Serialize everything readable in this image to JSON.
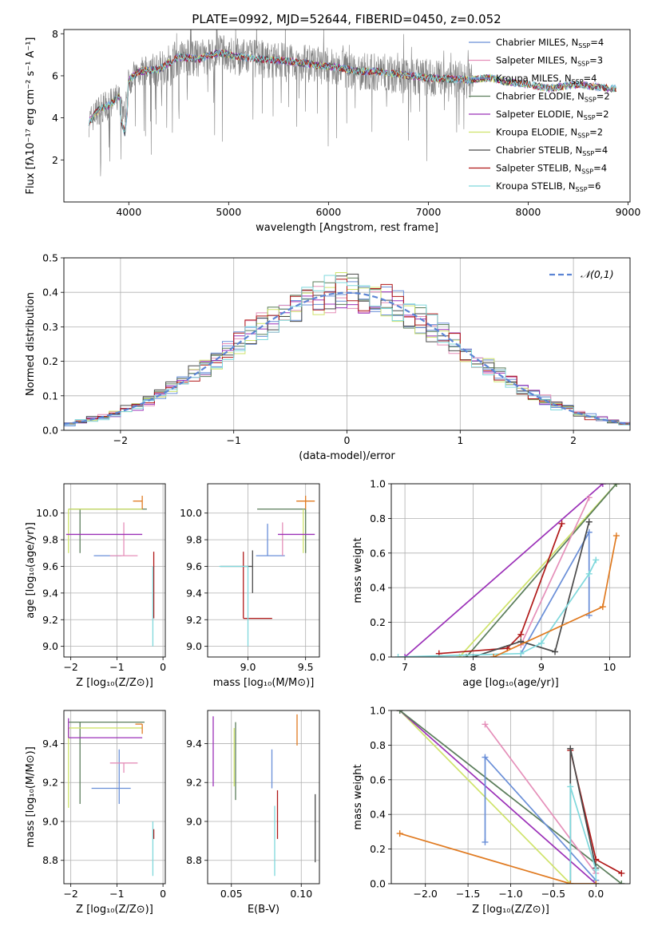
{
  "figure_title": "PLATE=0992, MJD=52644, FIBERID=0450, z=0.052",
  "colors": {
    "Chabrier MILES": "#6a8fd8",
    "Salpeter MILES": "#e58fb9",
    "Kroupa MILES": "#6a8fd8",
    "Chabrier ELODIE": "#5a7d5a",
    "Salpeter ELODIE": "#9b30b8",
    "Kroupa ELODIE": "#cfe36a",
    "Chabrier STELIB": "#4a4a4a",
    "Salpeter STELIB": "#b01818",
    "Kroupa STELIB": "#7fd8dc",
    "extra": "#e07a20",
    "data": "#808080"
  },
  "chart_data": [
    {
      "id": "spectrum",
      "type": "line",
      "xlabel": "wavelength [Angstrom, rest frame]",
      "ylabel": "Flux [fλ10⁻¹⁷ erg cm⁻² s⁻¹ A⁻¹]",
      "xlim": [
        3350,
        9020
      ],
      "ylim": [
        0,
        8.2
      ],
      "xticks": [
        "4000",
        "5000",
        "6000",
        "7000",
        "8000",
        "9000"
      ],
      "yticks": [
        "2",
        "4",
        "6",
        "8"
      ],
      "legend": [
        "Chabrier MILES, N_SSP=4",
        "Salpeter MILES, N_SSP=3",
        "Kroupa MILES, N_SSP=4",
        "Chabrier ELODIE, N_SSP=2",
        "Salpeter ELODIE, N_SSP=2",
        "Kroupa ELODIE, N_SSP=2",
        "Chabrier STELIB, N_SSP=4",
        "Salpeter STELIB, N_SSP=4",
        "Kroupa STELIB, N_SSP=6"
      ],
      "legend_location": "right",
      "continuum_knots": [
        [
          3600,
          3.8
        ],
        [
          3700,
          4.4
        ],
        [
          3800,
          4.6
        ],
        [
          3900,
          5.0
        ],
        [
          3960,
          4.1
        ],
        [
          4000,
          5.8
        ],
        [
          4100,
          6.2
        ],
        [
          4300,
          6.3
        ],
        [
          4500,
          6.9
        ],
        [
          4700,
          6.8
        ],
        [
          4900,
          7.1
        ],
        [
          5100,
          6.9
        ],
        [
          5300,
          6.8
        ],
        [
          5600,
          6.7
        ],
        [
          5900,
          6.5
        ],
        [
          6100,
          6.4
        ],
        [
          6300,
          6.2
        ],
        [
          6500,
          6.2
        ],
        [
          6800,
          6.0
        ],
        [
          7000,
          5.9
        ],
        [
          7400,
          5.8
        ],
        [
          7600,
          5.9
        ],
        [
          7800,
          5.7
        ],
        [
          8000,
          5.6
        ],
        [
          8200,
          5.4
        ],
        [
          8500,
          5.6
        ],
        [
          8800,
          5.4
        ]
      ],
      "model_end_wavelength": 8880,
      "data_end_wavelength": 7450
    },
    {
      "id": "residuals",
      "type": "histogram",
      "xlabel": "(data-model)/error",
      "ylabel": "Normed distribution",
      "xlim": [
        -2.5,
        2.5
      ],
      "ylim": [
        0,
        0.5
      ],
      "xticks": [
        "−2",
        "−1",
        "0",
        "1",
        "2"
      ],
      "yticks": [
        "0.0",
        "0.1",
        "0.2",
        "0.3",
        "0.4",
        "0.5"
      ],
      "grid": true,
      "legend": [
        "𝒩(0,1)"
      ],
      "legend_location": "top-right",
      "bins": [
        -2.5,
        2.5,
        50
      ],
      "curve": {
        "mean": 0,
        "sigma": 1,
        "style": "dashed"
      }
    },
    {
      "id": "age-vs-Z",
      "type": "errorbar",
      "xlabel": "Z [log₁₀(Z/Z⊙)]",
      "ylabel": "age  [log₁₀(age/yr)]",
      "xlim": [
        -2.15,
        0.05
      ],
      "ylim": [
        8.92,
        10.22
      ],
      "xticks": [
        "−2",
        "−1",
        "0"
      ],
      "yticks": [
        "9.0",
        "9.2",
        "9.4",
        "9.6",
        "9.8",
        "10.0"
      ],
      "grid": true,
      "points": [
        {
          "c": "Chabrier MILES",
          "x": -0.9,
          "y": 9.68,
          "xerr": [
            0.6,
            0.0
          ],
          "yerr": [
            0.0,
            0.0
          ]
        },
        {
          "c": "Salpeter MILES",
          "x": -0.85,
          "y": 9.68,
          "xerr": [
            0.3,
            0.3
          ],
          "yerr": [
            0.0,
            0.25
          ]
        },
        {
          "c": "Chabrier ELODIE",
          "x": -1.8,
          "y": 10.03,
          "xerr": [
            0.25,
            1.45
          ],
          "yerr": [
            0.33,
            0.0
          ]
        },
        {
          "c": "Kroupa ELODIE",
          "x": -2.05,
          "y": 10.03,
          "xerr": [
            0.0,
            1.6
          ],
          "yerr": [
            0.33,
            0.0
          ]
        },
        {
          "c": "Salpeter ELODIE",
          "x": -0.9,
          "y": 9.84,
          "xerr": [
            1.2,
            0.45
          ],
          "yerr": [
            0.0,
            0.0
          ]
        },
        {
          "c": "Chabrier STELIB",
          "x": -0.2,
          "y": 9.6,
          "xerr": [
            0.0,
            0.0
          ],
          "yerr": [
            0.0,
            0.0
          ]
        },
        {
          "c": "Salpeter STELIB",
          "x": -0.2,
          "y": 9.21,
          "xerr": [
            0.0,
            0.0
          ],
          "yerr": [
            0.0,
            0.5
          ]
        },
        {
          "c": "Kroupa STELIB",
          "x": -0.22,
          "y": 9.6,
          "xerr": [
            0.0,
            0.0
          ],
          "yerr": [
            0.6,
            0.0
          ]
        },
        {
          "c": "extra",
          "x": -0.45,
          "y": 10.09,
          "xerr": [
            0.2,
            0.0
          ],
          "yerr": [
            0.06,
            0.04
          ]
        }
      ]
    },
    {
      "id": "age-vs-mass",
      "type": "errorbar",
      "xlabel": "mass [log₁₀(M/M⊙)]",
      "ylabel": "",
      "xlim": [
        8.65,
        9.62
      ],
      "ylim": [
        8.92,
        10.22
      ],
      "xticks": [
        "9.0",
        "9.5"
      ],
      "yticks": [
        "9.0",
        "9.2",
        "9.4",
        "9.6",
        "9.8",
        "10.0"
      ],
      "grid": true,
      "points": [
        {
          "c": "Chabrier MILES",
          "x": 9.17,
          "y": 9.68,
          "xerr": [
            0.1,
            0.15
          ],
          "yerr": [
            0.0,
            0.24
          ]
        },
        {
          "c": "Salpeter MILES",
          "x": 9.3,
          "y": 9.68,
          "xerr": [
            0.0,
            0.0
          ],
          "yerr": [
            0.0,
            0.25
          ]
        },
        {
          "c": "Chabrier ELODIE",
          "x": 9.5,
          "y": 10.03,
          "xerr": [
            0.42,
            0.0
          ],
          "yerr": [
            0.33,
            0.0
          ]
        },
        {
          "c": "Kroupa ELODIE",
          "x": 9.48,
          "y": 10.03,
          "xerr": [
            0.0,
            0.0
          ],
          "yerr": [
            0.33,
            0.0
          ]
        },
        {
          "c": "Salpeter ELODIE",
          "x": 9.43,
          "y": 9.84,
          "xerr": [
            0.17,
            0.15
          ],
          "yerr": [
            0.0,
            0.0
          ]
        },
        {
          "c": "Chabrier STELIB",
          "x": 9.04,
          "y": 9.6,
          "xerr": [
            0.28,
            0.0
          ],
          "yerr": [
            0.2,
            0.12
          ]
        },
        {
          "c": "Salpeter STELIB",
          "x": 8.96,
          "y": 9.21,
          "xerr": [
            0.0,
            0.25
          ],
          "yerr": [
            0.0,
            0.5
          ]
        },
        {
          "c": "Kroupa STELIB",
          "x": 9.0,
          "y": 9.6,
          "xerr": [
            0.25,
            0.0
          ],
          "yerr": [
            0.6,
            0.0
          ]
        },
        {
          "c": "extra",
          "x": 9.5,
          "y": 10.09,
          "xerr": [
            0.08,
            0.08
          ],
          "yerr": [
            0.06,
            0.04
          ]
        }
      ]
    },
    {
      "id": "weight-vs-age",
      "type": "line",
      "xlabel": "age  [log₁₀(age/yr)]",
      "ylabel": "mass weight",
      "xlim": [
        6.8,
        10.3
      ],
      "ylim": [
        0,
        1
      ],
      "xticks": [
        "7",
        "8",
        "9",
        "10"
      ],
      "yticks": [
        "0.0",
        "0.2",
        "0.4",
        "0.6",
        "0.8",
        "1.0"
      ],
      "grid": true,
      "series": [
        {
          "c": "Salpeter ELODIE",
          "x": [
            7.0,
            9.9
          ],
          "y": [
            0.0,
            1.0
          ]
        },
        {
          "c": "Kroupa ELODIE",
          "x": [
            7.8,
            10.1
          ],
          "y": [
            0.0,
            1.0
          ]
        },
        {
          "c": "Chabrier ELODIE",
          "x": [
            7.9,
            10.1
          ],
          "y": [
            0.0,
            1.0
          ]
        },
        {
          "c": "Salpeter MILES",
          "x": [
            8.7,
            9.7
          ],
          "y": [
            0.07,
            0.92
          ]
        },
        {
          "c": "Chabrier MILES",
          "x": [
            8.7,
            9.7,
            9.7
          ],
          "y": [
            0.02,
            0.72,
            0.24
          ]
        },
        {
          "c": "Salpeter STELIB",
          "x": [
            7.5,
            8.5,
            8.7,
            9.3
          ],
          "y": [
            0.02,
            0.05,
            0.13,
            0.77
          ]
        },
        {
          "c": "Chabrier STELIB",
          "x": [
            8.0,
            8.7,
            9.2,
            9.7
          ],
          "y": [
            0.0,
            0.09,
            0.03,
            0.78
          ]
        },
        {
          "c": "Kroupa STELIB",
          "x": [
            6.9,
            8.7,
            9.0,
            9.7,
            9.8
          ],
          "y": [
            0.0,
            0.02,
            0.08,
            0.48,
            0.56
          ]
        },
        {
          "c": "extra",
          "x": [
            8.3,
            9.9,
            10.1
          ],
          "y": [
            0.0,
            0.29,
            0.7
          ]
        }
      ]
    },
    {
      "id": "mass-vs-Z",
      "type": "errorbar",
      "xlabel": "Z [log₁₀(Z/Z⊙)]",
      "ylabel": "mass [log₁₀(M/M⊙)]",
      "xlim": [
        -2.15,
        0.05
      ],
      "ylim": [
        8.68,
        9.57
      ],
      "xticks": [
        "−2",
        "−1",
        "0"
      ],
      "yticks": [
        "8.8",
        "9.0",
        "9.2",
        "9.4"
      ],
      "grid": true,
      "points": [
        {
          "c": "Chabrier MILES",
          "x": -0.95,
          "y": 9.17,
          "xerr": [
            0.6,
            0.25
          ],
          "yerr": [
            0.08,
            0.2
          ]
        },
        {
          "c": "Salpeter MILES",
          "x": -0.85,
          "y": 9.3,
          "xerr": [
            0.3,
            0.3
          ],
          "yerr": [
            0.05,
            0.0
          ]
        },
        {
          "c": "Chabrier ELODIE",
          "x": -1.8,
          "y": 9.51,
          "xerr": [
            0.25,
            1.4
          ],
          "yerr": [
            0.42,
            0.0
          ]
        },
        {
          "c": "Kroupa ELODIE",
          "x": -2.05,
          "y": 9.48,
          "xerr": [
            0.0,
            1.6
          ],
          "yerr": [
            0.41,
            0.0
          ]
        },
        {
          "c": "Salpeter ELODIE",
          "x": -2.05,
          "y": 9.43,
          "xerr": [
            0.0,
            1.6
          ],
          "yerr": [
            0.0,
            0.1
          ]
        },
        {
          "c": "Chabrier STELIB",
          "x": -0.2,
          "y": 9.04,
          "xerr": [
            0.0,
            0.0
          ],
          "yerr": [
            0.0,
            0.0
          ]
        },
        {
          "c": "Salpeter STELIB",
          "x": -0.2,
          "y": 8.96,
          "xerr": [
            0.0,
            0.0
          ],
          "yerr": [
            0.05,
            0.0
          ]
        },
        {
          "c": "Kroupa STELIB",
          "x": -0.22,
          "y": 9.0,
          "xerr": [
            0.0,
            0.0
          ],
          "yerr": [
            0.28,
            0.0
          ]
        },
        {
          "c": "extra",
          "x": -0.45,
          "y": 9.5,
          "xerr": [
            0.15,
            0.0
          ],
          "yerr": [
            0.05,
            0.0
          ]
        }
      ]
    },
    {
      "id": "mass-vs-ebv",
      "type": "errorbar",
      "xlabel": "E(B-V)",
      "ylabel": "",
      "xlim": [
        0.033,
        0.113
      ],
      "ylim": [
        8.68,
        9.57
      ],
      "xticks": [
        "0.05",
        "0.10"
      ],
      "yticks": [
        "8.8",
        "9.0",
        "9.2",
        "9.4"
      ],
      "grid": true,
      "points": [
        {
          "c": "Chabrier MILES",
          "x": 0.079,
          "y": 9.17,
          "xerr": [
            0.0,
            0.0
          ],
          "yerr": [
            0.0,
            0.2
          ]
        },
        {
          "c": "Salpeter MILES",
          "x": 0.055,
          "y": 9.3,
          "xerr": [
            0.0,
            0.0
          ],
          "yerr": [
            0.0,
            0.0
          ]
        },
        {
          "c": "Chabrier ELODIE",
          "x": 0.053,
          "y": 9.51,
          "xerr": [
            0.0,
            0.0
          ],
          "yerr": [
            0.4,
            0.0
          ]
        },
        {
          "c": "Kroupa ELODIE",
          "x": 0.052,
          "y": 9.48,
          "xerr": [
            0.0,
            0.0
          ],
          "yerr": [
            0.3,
            0.0
          ]
        },
        {
          "c": "Salpeter ELODIE",
          "x": 0.037,
          "y": 9.43,
          "xerr": [
            0.0,
            0.0
          ],
          "yerr": [
            0.25,
            0.11
          ]
        },
        {
          "c": "Chabrier STELIB",
          "x": 0.11,
          "y": 9.04,
          "xerr": [
            0.0,
            0.0
          ],
          "yerr": [
            0.25,
            0.1
          ]
        },
        {
          "c": "Salpeter STELIB",
          "x": 0.083,
          "y": 8.96,
          "xerr": [
            0.0,
            0.0
          ],
          "yerr": [
            0.05,
            0.2
          ]
        },
        {
          "c": "Kroupa STELIB",
          "x": 0.081,
          "y": 9.0,
          "xerr": [
            0.0,
            0.0
          ],
          "yerr": [
            0.28,
            0.08
          ]
        },
        {
          "c": "extra",
          "x": 0.097,
          "y": 9.5,
          "xerr": [
            0.0,
            0.0
          ],
          "yerr": [
            0.11,
            0.05
          ]
        }
      ]
    },
    {
      "id": "weight-vs-Z",
      "type": "line",
      "xlabel": "Z [log₁₀(Z/Z⊙)]",
      "ylabel": "mass weight",
      "xlim": [
        -2.4,
        0.4
      ],
      "ylim": [
        0,
        1
      ],
      "xticks": [
        "−2.0",
        "−1.5",
        "−1.0",
        "−0.5",
        "0.0"
      ],
      "yticks": [
        "0.0",
        "0.2",
        "0.4",
        "0.6",
        "0.8",
        "1.0"
      ],
      "grid": true,
      "series": [
        {
          "c": "Kroupa ELODIE",
          "x": [
            -2.3,
            -0.3
          ],
          "y": [
            1.0,
            0.0
          ]
        },
        {
          "c": "Salpeter ELODIE",
          "x": [
            -2.3,
            0.0
          ],
          "y": [
            1.0,
            0.0
          ]
        },
        {
          "c": "Chabrier ELODIE",
          "x": [
            -2.3,
            0.3
          ],
          "y": [
            1.0,
            0.0
          ]
        },
        {
          "c": "Salpeter MILES",
          "x": [
            -1.3,
            0.0
          ],
          "y": [
            0.92,
            0.06
          ]
        },
        {
          "c": "Chabrier MILES",
          "x": [
            -1.3,
            -1.3,
            0.0
          ],
          "y": [
            0.24,
            0.73,
            0.02
          ]
        },
        {
          "c": "Salpeter STELIB",
          "x": [
            -0.3,
            0.0,
            0.3
          ],
          "y": [
            0.77,
            0.14,
            0.06
          ]
        },
        {
          "c": "Chabrier STELIB",
          "x": [
            -0.3,
            -0.3,
            0.0
          ],
          "y": [
            0.0,
            0.78,
            0.09
          ]
        },
        {
          "c": "Kroupa STELIB",
          "x": [
            -0.3,
            -0.3,
            0.0,
            0.0
          ],
          "y": [
            0.0,
            0.56,
            0.08,
            0.0
          ]
        },
        {
          "c": "extra",
          "x": [
            -2.3,
            -0.3,
            0.0
          ],
          "y": [
            0.29,
            0.0,
            0.0
          ]
        }
      ]
    }
  ]
}
